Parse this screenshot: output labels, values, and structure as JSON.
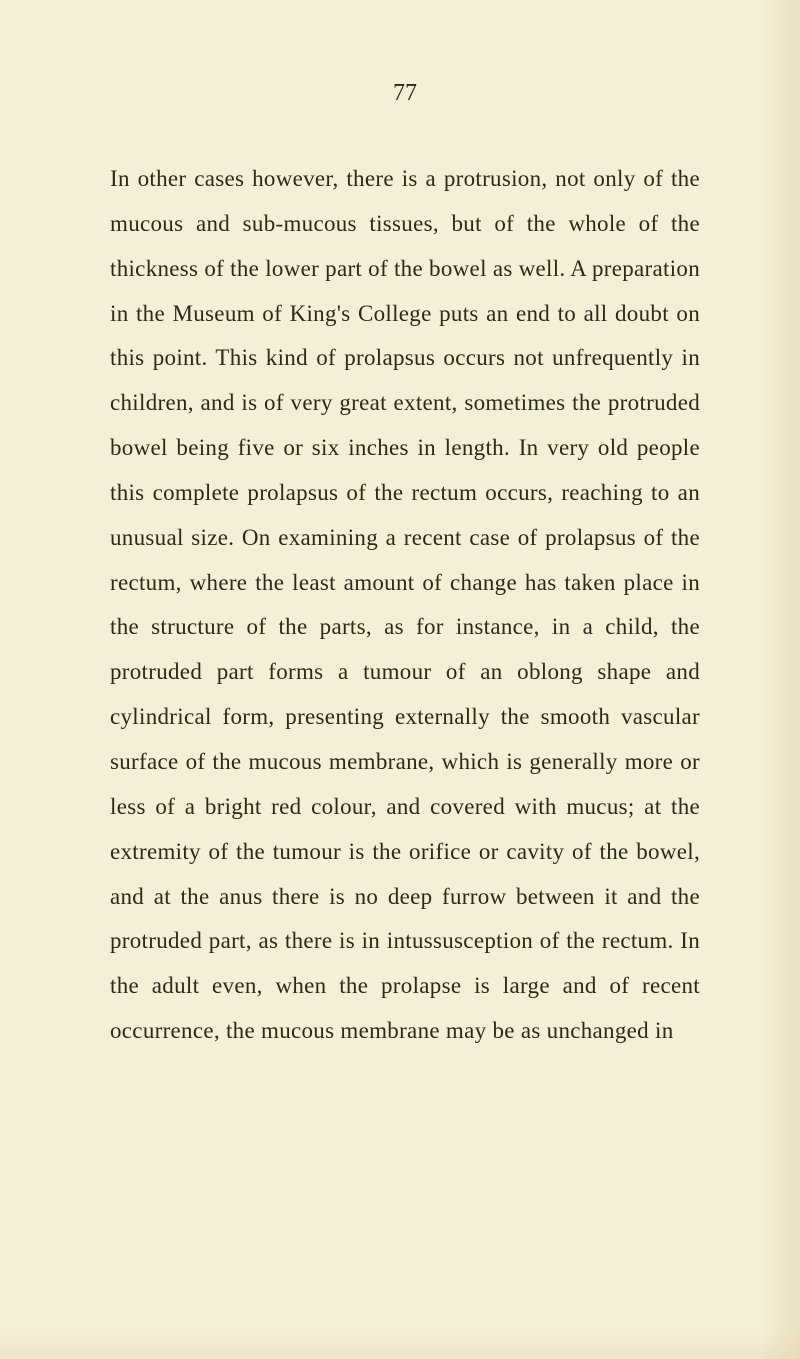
{
  "page_number": "77",
  "body_text": "In other cases however, there is a protrusion, not only of the mucous and sub-mucous tissues, but of the whole of the thickness of the lower part of the bowel as well. A preparation in the Museum of King's College puts an end to all doubt on this point. This kind of prolapsus occurs not unfrequently in children, and is of very great extent, sometimes the protruded bowel being five or six inches in length. In very old people this complete prolapsus of the rectum occurs, reaching to an unusual size. On examining a recent case of prolapsus of the rectum, where the least amount of change has taken place in the structure of the parts, as for instance, in a child, the protruded part forms a tumour of an oblong shape and cylindrical form, presenting externally the smooth vascular surface of the mucous membrane, which is generally more or less of a bright red colour, and covered with mucus; at the extremity of the tumour is the orifice or cavity of the bowel, and at the anus there is no deep furrow between it and the protruded part, as there is in intussusception of the rectum. In the adult even, when the prolapse is large and of recent occurrence, the mucous membrane may be as unchanged in",
  "colors": {
    "background": "#f5efd8",
    "text": "#2a2a1a",
    "shadow": "rgba(180, 150, 80, 0.15)"
  },
  "typography": {
    "body_fontsize": 23,
    "body_lineheight": 1.95,
    "page_number_fontsize": 24,
    "font_family": "Georgia, Times New Roman, serif"
  }
}
